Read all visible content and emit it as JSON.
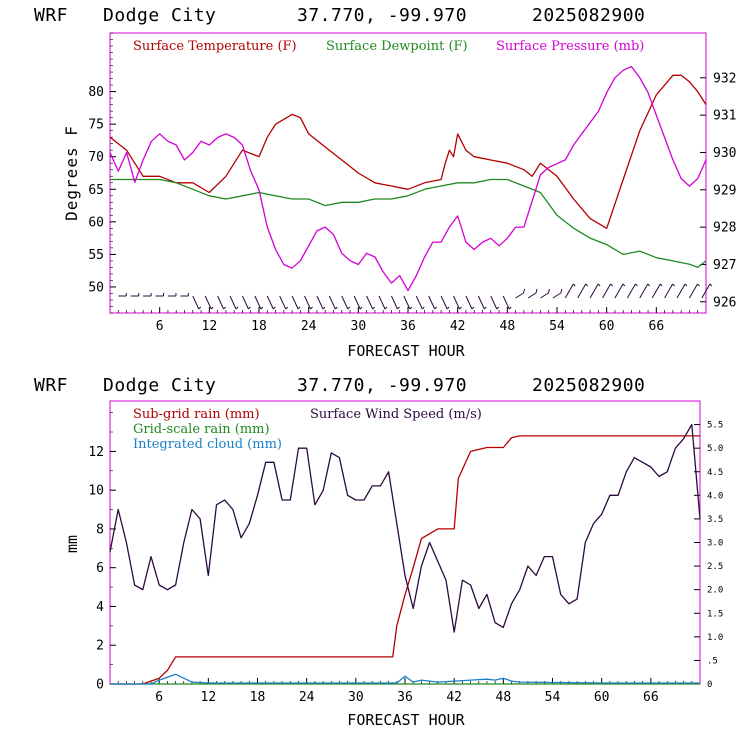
{
  "colors": {
    "temperature": "#b30000",
    "dewpoint": "#1f8a1f",
    "pressure": "#d400d4",
    "subgrid_rain": "#b30000",
    "gridscale_rain": "#1f8a1f",
    "integrated_cloud": "#1a7fc8",
    "wind_speed": "#2b0a3d",
    "frame": "#d400d4"
  },
  "panel1": {
    "header": {
      "model": "WRF",
      "station": "Dodge City",
      "coords": "37.770, -99.970",
      "date": "2025082900"
    },
    "legend": [
      "Surface Temperature (F)",
      "Surface Dewpoint (F)",
      "Surface Pressure (mb)"
    ],
    "ylabel": "Degrees F",
    "xlabel": "FORECAST HOUR",
    "x_ticks": [
      "6",
      "12",
      "18",
      "24",
      "30",
      "36",
      "42",
      "48",
      "54",
      "60",
      "66"
    ],
    "y_ticks": [
      "50",
      "55",
      "60",
      "65",
      "70",
      "75",
      "80"
    ],
    "y2_ticks": [
      "926",
      "927",
      "928",
      "929",
      "930",
      "931",
      "932"
    ]
  },
  "panel2": {
    "header": {
      "model": "WRF",
      "station": "Dodge City",
      "coords": "37.770, -99.970",
      "date": "2025082900"
    },
    "legend_left": [
      "Sub-grid rain (mm)",
      "Grid-scale rain (mm)",
      "Integrated cloud (mm)"
    ],
    "legend_right": "Surface Wind Speed (m/s)",
    "ylabel": "mm",
    "xlabel": "FORECAST HOUR",
    "x_ticks": [
      "6",
      "12",
      "18",
      "24",
      "30",
      "36",
      "42",
      "48",
      "54",
      "60",
      "66"
    ],
    "y_ticks": [
      "0",
      "2",
      "4",
      "6",
      "8",
      "10",
      "12"
    ],
    "y2_ticks": [
      "0",
      ".5",
      "1.0",
      "1.5",
      "2.0",
      "2.5",
      "3.0",
      "3.5",
      "4.0",
      "4.5",
      "5.0",
      "5.5"
    ]
  },
  "chart_data": [
    {
      "type": "line",
      "title": "WRF Dodge City 37.770, -99.970 2025082900",
      "xlabel": "FORECAST HOUR",
      "ylabel": "Degrees F",
      "xlim": [
        0,
        72
      ],
      "ylim": [
        46,
        89
      ],
      "y2lim": [
        925.7,
        933.2
      ],
      "series": [
        {
          "name": "Surface Temperature (F)",
          "axis": "left",
          "x": [
            0,
            2,
            4,
            6,
            8,
            10,
            12,
            14,
            16,
            18,
            19,
            20,
            22,
            23,
            24,
            26,
            28,
            30,
            32,
            34,
            36,
            38,
            40,
            40.5,
            41,
            41.5,
            42,
            43,
            44,
            46,
            48,
            50,
            51,
            52,
            54,
            56,
            58,
            60,
            62,
            64,
            66,
            68,
            69,
            70,
            71,
            72
          ],
          "y": [
            73,
            71,
            67,
            67,
            66,
            66,
            64.5,
            67,
            71,
            70,
            73,
            75,
            76.5,
            76,
            73.5,
            71.5,
            69.5,
            67.5,
            66,
            65.5,
            65,
            66,
            66.5,
            69,
            71,
            70,
            73.5,
            71,
            70,
            69.5,
            69,
            68,
            67,
            69,
            67,
            63.5,
            60.5,
            59,
            66.5,
            74,
            79.5,
            82.5,
            82.5,
            81.5,
            80,
            78
          ]
        },
        {
          "name": "Surface Dewpoint (F)",
          "axis": "left",
          "x": [
            0,
            2,
            4,
            6,
            8,
            10,
            12,
            14,
            16,
            18,
            20,
            22,
            24,
            26,
            28,
            30,
            32,
            34,
            36,
            38,
            40,
            42,
            44,
            46,
            48,
            50,
            52,
            54,
            56,
            58,
            60,
            62,
            64,
            66,
            68,
            70,
            71,
            72
          ],
          "y": [
            66.5,
            66.5,
            66.5,
            66.5,
            66,
            65,
            64,
            63.5,
            64,
            64.5,
            64,
            63.5,
            63.5,
            62.5,
            63,
            63,
            63.5,
            63.5,
            64,
            65,
            65.5,
            66,
            66,
            66.5,
            66.5,
            65.5,
            64.5,
            61,
            59,
            57.5,
            56.5,
            55,
            55.5,
            54.5,
            54,
            53.5,
            53,
            54
          ]
        },
        {
          "name": "Surface Pressure (mb)",
          "axis": "right",
          "x": [
            0,
            1,
            2,
            3,
            4,
            5,
            6,
            7,
            8,
            9,
            10,
            11,
            12,
            13,
            14,
            15,
            16,
            17,
            18,
            19,
            20,
            21,
            22,
            23,
            24,
            25,
            26,
            27,
            28,
            29,
            30,
            31,
            32,
            33,
            34,
            35,
            36,
            37,
            38,
            39,
            40,
            41,
            42,
            43,
            44,
            45,
            46,
            47,
            48,
            49,
            50,
            51,
            52,
            53,
            54,
            55,
            56,
            57,
            58,
            59,
            60,
            61,
            62,
            63,
            64,
            65,
            66,
            67,
            68,
            69,
            70,
            71,
            72
          ],
          "y": [
            930,
            929.5,
            930,
            929.2,
            929.8,
            930.3,
            930.5,
            930.3,
            930.2,
            929.8,
            930,
            930.3,
            930.2,
            930.4,
            930.5,
            930.4,
            930.2,
            929.5,
            929,
            928,
            927.4,
            927,
            926.9,
            927.1,
            927.5,
            927.9,
            928,
            927.8,
            927.3,
            927.1,
            927,
            927.3,
            927.2,
            926.8,
            926.5,
            926.7,
            926.3,
            926.7,
            927.2,
            927.6,
            927.6,
            928,
            928.3,
            927.6,
            927.4,
            927.6,
            927.7,
            927.5,
            927.7,
            928,
            928,
            928.7,
            929.4,
            929.6,
            929.7,
            929.8,
            930.2,
            930.5,
            930.8,
            931.1,
            931.6,
            932,
            932.2,
            932.3,
            932,
            931.6,
            931,
            930.4,
            929.8,
            929.3,
            929.1,
            929.3,
            929.8
          ]
        }
      ],
      "wind_barbs": true
    },
    {
      "type": "line",
      "title": "WRF Dodge City 37.770, -99.970 2025082900",
      "xlabel": "FORECAST HOUR",
      "ylabel": "mm",
      "xlim": [
        0,
        72
      ],
      "ylim": [
        0,
        14.6
      ],
      "y2lim": [
        0,
        6.0
      ],
      "series": [
        {
          "name": "Sub-grid rain (mm)",
          "axis": "left",
          "x": [
            0,
            4,
            6,
            7,
            8,
            10,
            12,
            20,
            30,
            34.5,
            35,
            36,
            37,
            38,
            40,
            41,
            42,
            42.5,
            44,
            46,
            47,
            48,
            49,
            50,
            60,
            66,
            68,
            72
          ],
          "y": [
            0,
            0,
            0.3,
            0.7,
            1.4,
            1.4,
            1.4,
            1.4,
            1.4,
            1.4,
            3,
            4.6,
            6,
            7.5,
            8,
            8,
            8,
            10.6,
            12,
            12.2,
            12.2,
            12.2,
            12.7,
            12.8,
            12.8,
            12.8,
            12.8,
            12.8
          ]
        },
        {
          "name": "Grid-scale rain (mm)",
          "axis": "left",
          "x": [
            0,
            72
          ],
          "y": [
            0,
            0
          ]
        },
        {
          "name": "Integrated cloud (mm)",
          "axis": "left",
          "x": [
            0,
            5,
            6,
            7,
            8,
            9,
            10,
            12,
            20,
            30,
            35,
            36,
            37,
            38,
            40,
            42,
            44,
            46,
            47,
            48,
            49,
            50,
            60,
            72
          ],
          "y": [
            0,
            0,
            0.2,
            0.35,
            0.5,
            0.3,
            0.1,
            0.05,
            0.05,
            0.05,
            0.05,
            0.4,
            0.1,
            0.2,
            0.1,
            0.15,
            0.2,
            0.25,
            0.2,
            0.3,
            0.15,
            0.1,
            0.05,
            0.05
          ]
        },
        {
          "name": "Surface Wind Speed (m/s)",
          "axis": "right",
          "x": [
            0,
            1,
            2,
            3,
            4,
            5,
            6,
            7,
            8,
            9,
            10,
            11,
            12,
            13,
            14,
            15,
            16,
            17,
            18,
            19,
            20,
            21,
            22,
            23,
            24,
            25,
            26,
            27,
            28,
            29,
            30,
            31,
            32,
            33,
            34,
            35,
            36,
            37,
            38,
            39,
            40,
            41,
            42,
            43,
            44,
            45,
            46,
            47,
            48,
            49,
            50,
            51,
            52,
            53,
            54,
            55,
            56,
            57,
            58,
            59,
            60,
            61,
            62,
            63,
            64,
            65,
            66,
            67,
            68,
            69,
            70,
            71,
            72
          ],
          "y": [
            2.8,
            3.7,
            3.0,
            2.1,
            2.0,
            2.7,
            2.1,
            2.0,
            2.1,
            3.0,
            3.7,
            3.5,
            2.3,
            3.8,
            3.9,
            3.7,
            3.1,
            3.4,
            4.0,
            4.7,
            4.7,
            3.9,
            3.9,
            5.0,
            5.0,
            3.8,
            4.1,
            4.9,
            4.8,
            4.0,
            3.9,
            3.9,
            4.2,
            4.2,
            4.5,
            3.4,
            2.3,
            1.6,
            2.5,
            3.0,
            2.6,
            2.2,
            1.1,
            2.2,
            2.1,
            1.6,
            1.9,
            1.3,
            1.2,
            1.7,
            2.0,
            2.5,
            2.3,
            2.7,
            2.7,
            1.9,
            1.7,
            1.8,
            3.0,
            3.4,
            3.6,
            4.0,
            4.0,
            4.5,
            4.8,
            4.7,
            4.6,
            4.4,
            4.5,
            5.0,
            5.2,
            5.5,
            3.5
          ]
        }
      ]
    }
  ]
}
